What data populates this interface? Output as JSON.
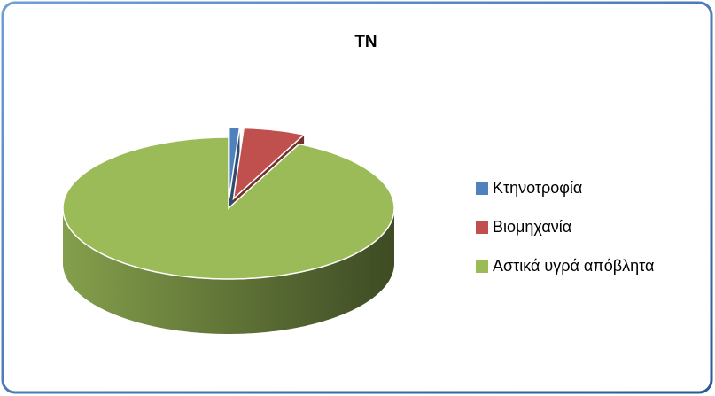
{
  "chart_data": {
    "type": "pie3d",
    "title": "TN",
    "categories": [
      "Κτηνοτροφία",
      "Βιομηχανία",
      "Αστικά υγρά απόβλητα"
    ],
    "values": [
      1,
      6,
      93
    ],
    "colors": [
      "#4f81bd",
      "#c0504d",
      "#9bbb59"
    ],
    "legend": "right"
  }
}
